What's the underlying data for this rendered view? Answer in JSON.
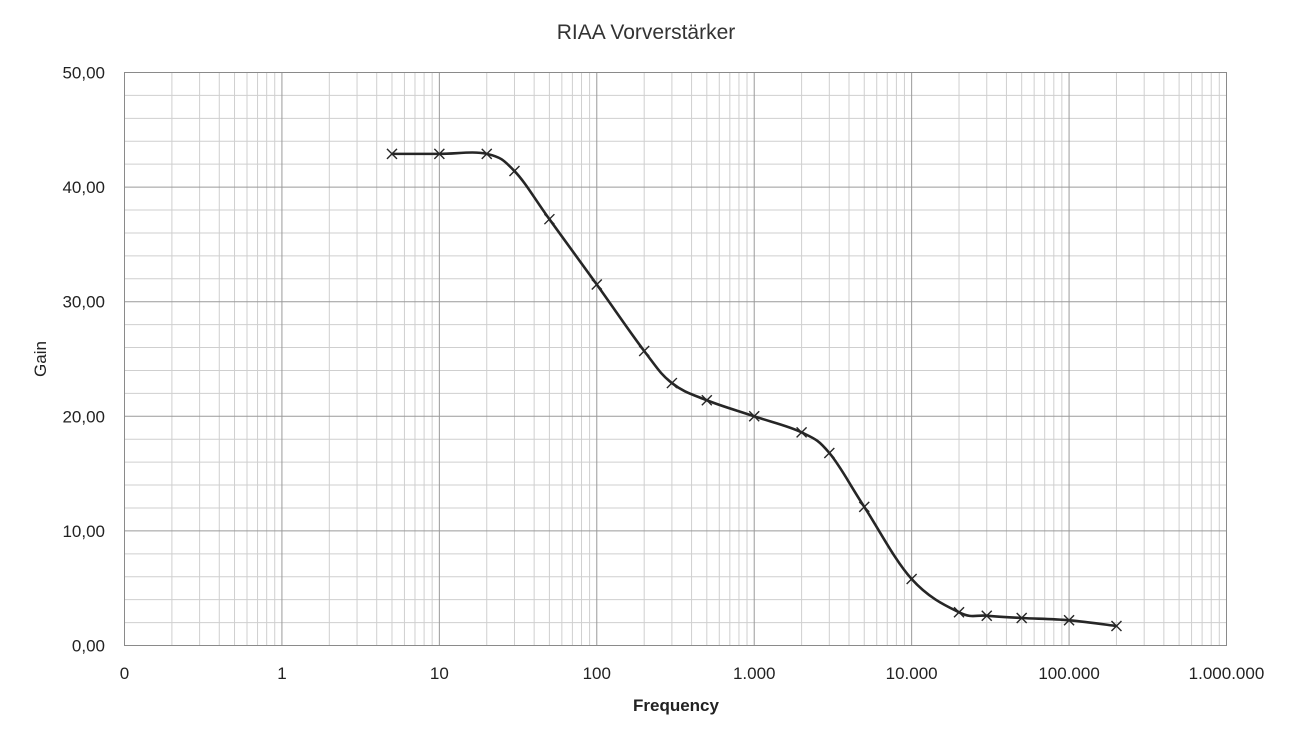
{
  "chart_data": {
    "type": "line",
    "title": "RIAA Vorverstärker",
    "xlabel": "Frequency",
    "ylabel": "Gain",
    "x_scale": "log",
    "x_tick_labels": [
      "0",
      "1",
      "10",
      "100",
      "1.000",
      "10.000",
      "100.000",
      "1.000.000"
    ],
    "y_tick_labels": [
      "0,00",
      "10,00",
      "20,00",
      "30,00",
      "40,00",
      "50,00"
    ],
    "ylim": [
      0,
      50
    ],
    "grid": true,
    "smooth": true,
    "marker": "x",
    "series_color": "#262626",
    "series": [
      {
        "x": [
          5,
          10,
          20,
          30,
          50,
          100,
          200,
          300,
          500,
          1000,
          2000,
          3000,
          5000,
          10000,
          20000,
          30000,
          50000,
          100000,
          200000
        ],
        "y": [
          42.9,
          42.9,
          42.9,
          41.4,
          37.2,
          31.5,
          25.7,
          22.9,
          21.4,
          20.0,
          18.6,
          16.8,
          12.1,
          5.8,
          2.9,
          2.6,
          2.4,
          2.2,
          1.7
        ]
      }
    ]
  }
}
